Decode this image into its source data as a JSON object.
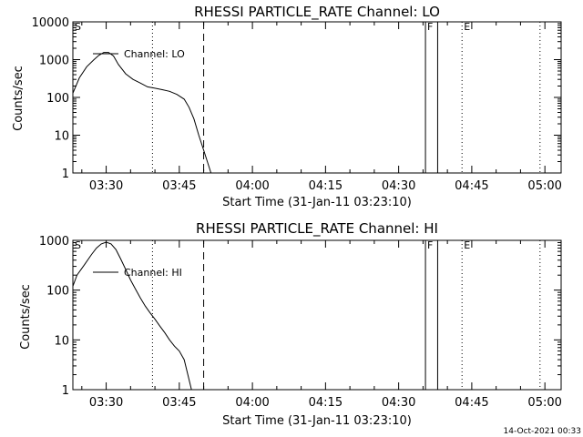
{
  "footer_timestamp": "14-Oct-2021 00:33",
  "chart_data": [
    {
      "type": "line",
      "title": "RHESSI PARTICLE_RATE Channel: LO",
      "xlabel": "Start Time (31-Jan-11 03:23:10)",
      "ylabel": "Counts/sec",
      "yscale": "log",
      "ylim": [
        1,
        10000
      ],
      "xlim": [
        "03:23:10",
        "05:03:20"
      ],
      "x_ticks": [
        "03:30",
        "03:45",
        "04:00",
        "04:15",
        "04:30",
        "04:45",
        "05:00"
      ],
      "y_ticks": [
        "1",
        "10",
        "100",
        "1000",
        "10000"
      ],
      "legend": "Channel: LO",
      "legend_position": "top-left",
      "series": [
        {
          "name": "Channel: LO",
          "x": [
            "03:23:10",
            "03:24:30",
            "03:26:00",
            "03:27:30",
            "03:28:30",
            "03:29:30",
            "03:30:30",
            "03:31:30",
            "03:32:30",
            "03:34:00",
            "03:35:30",
            "03:37:00",
            "03:38:30",
            "03:40:00",
            "03:41:30",
            "03:43:00",
            "03:44:30",
            "03:46:00",
            "03:47:00",
            "03:48:00",
            "03:49:00",
            "03:50:00",
            "03:51:00",
            "03:51:30"
          ],
          "y": [
            130,
            330,
            650,
            1000,
            1300,
            1550,
            1550,
            1250,
            750,
            420,
            300,
            240,
            190,
            175,
            160,
            145,
            120,
            90,
            55,
            27,
            10,
            4,
            1.6,
            1
          ]
        }
      ],
      "annotations": [
        {
          "label": "S",
          "time": "03:23:10",
          "style": "text"
        },
        {
          "time": "03:39:30",
          "style": "dotted"
        },
        {
          "time": "03:50:00",
          "style": "dashed"
        },
        {
          "label": "F",
          "time": "04:35:30",
          "style": "solid"
        },
        {
          "time": "04:38:00",
          "style": "solid"
        },
        {
          "label": "E",
          "time": "04:43:00",
          "style": "dotted"
        },
        {
          "time": "04:59:00",
          "style": "dotted"
        }
      ]
    },
    {
      "type": "line",
      "title": "RHESSI PARTICLE_RATE Channel: HI",
      "xlabel": "Start Time (31-Jan-11 03:23:10)",
      "ylabel": "Counts/sec",
      "yscale": "log",
      "ylim": [
        1,
        1000
      ],
      "xlim": [
        "03:23:10",
        "05:03:20"
      ],
      "x_ticks": [
        "03:30",
        "03:45",
        "04:00",
        "04:15",
        "04:30",
        "04:45",
        "05:00"
      ],
      "y_ticks": [
        "1",
        "10",
        "100",
        "1000"
      ],
      "legend": "Channel: HI",
      "legend_position": "top-left",
      "series": [
        {
          "name": "Channel: HI",
          "x": [
            "03:23:10",
            "03:24:00",
            "03:25:30",
            "03:27:00",
            "03:28:00",
            "03:29:00",
            "03:30:00",
            "03:31:00",
            "03:32:00",
            "03:33:00",
            "03:34:00",
            "03:35:00",
            "03:36:00",
            "03:37:00",
            "03:38:00",
            "03:39:00",
            "03:40:00",
            "03:41:00",
            "03:42:00",
            "03:43:00",
            "03:44:00",
            "03:45:00",
            "03:46:00",
            "03:46:45",
            "03:47:30"
          ],
          "y": [
            120,
            200,
            320,
            520,
            700,
            850,
            920,
            850,
            650,
            420,
            260,
            160,
            105,
            70,
            48,
            35,
            26,
            19,
            14,
            10,
            7.5,
            6,
            4,
            2,
            1
          ]
        }
      ],
      "annotations": [
        {
          "label": "S",
          "time": "03:23:10",
          "style": "text"
        },
        {
          "time": "03:39:30",
          "style": "dotted"
        },
        {
          "time": "03:50:00",
          "style": "dashed"
        },
        {
          "label": "F",
          "time": "04:35:30",
          "style": "solid"
        },
        {
          "time": "04:38:00",
          "style": "solid"
        },
        {
          "label": "E",
          "time": "04:43:00",
          "style": "dotted"
        },
        {
          "time": "04:59:00",
          "style": "dotted"
        }
      ]
    }
  ]
}
